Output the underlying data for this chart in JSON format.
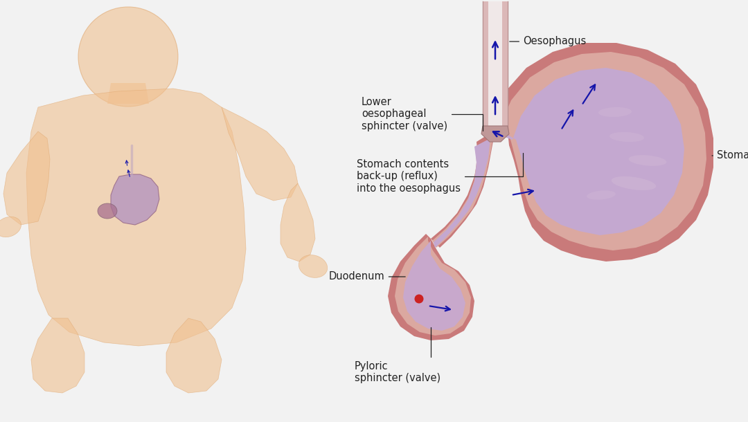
{
  "bg_color": "#f2f2f2",
  "stomach_outer_color": "#c97a7a",
  "stomach_wall_color": "#dba8a0",
  "stomach_inner_color": "#c8a8cc",
  "stomach_lumen_color": "#c4a8d0",
  "esophagus_wall_color": "#dbb8b8",
  "esophagus_lumen_color": "#f0e8e8",
  "duodenum_color": "#c97a7a",
  "duodenum_inner_color": "#c8a8cc",
  "arrow_color": "#1515aa",
  "label_color": "#222222",
  "baby_skin": "#f0c090",
  "baby_skin_edge": "#e0a870",
  "baby_organ_color": "#b090c0",
  "baby_organ_edge": "#906080",
  "labels": {
    "oesophagus": "Oesophagus",
    "lower_sphincter": "Lower\noesophageal\nsphincter (valve)",
    "stomach_contents": "Stomach contents\nback-up (reflux)\ninto the oesophagus",
    "stomach": "Stomach",
    "duodenum": "Duodenum",
    "pyloric": "Pyloric\nsphincter (valve)"
  },
  "font_size": 10.5
}
